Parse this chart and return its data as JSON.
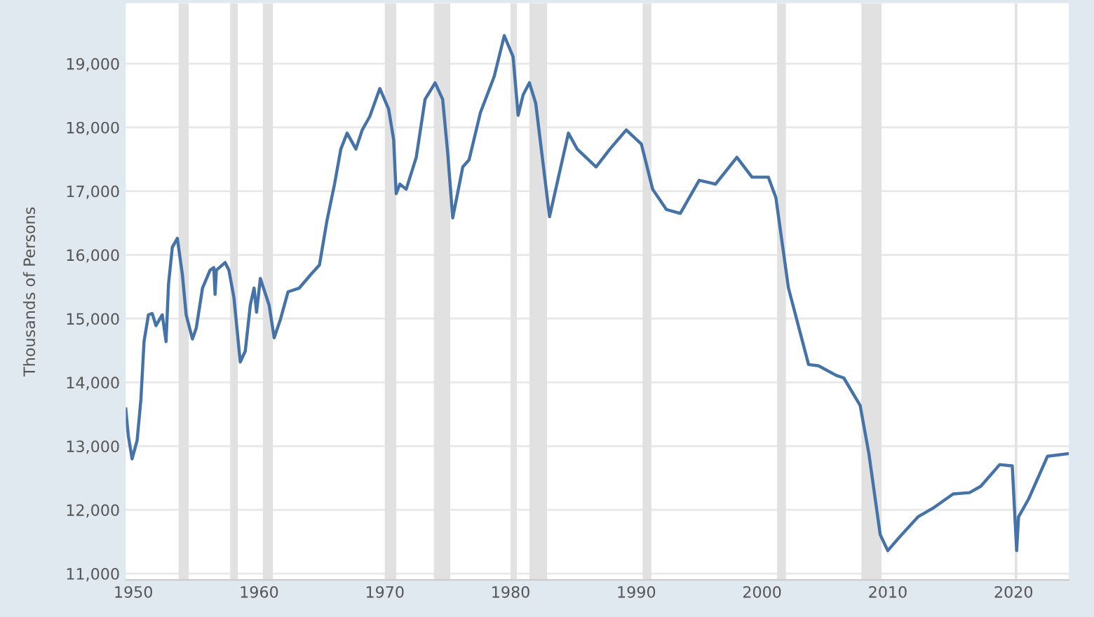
{
  "chart_data": {
    "type": "line",
    "ylabel": "Thousands of Persons",
    "x": [
      1949.4,
      1949.6,
      1949.9,
      1950.3,
      1950.6,
      1950.85,
      1951.2,
      1951.5,
      1951.8,
      1952.3,
      1952.6,
      1952.8,
      1953.1,
      1953.5,
      1953.9,
      1954.2,
      1954.7,
      1955.0,
      1955.5,
      1956.1,
      1956.4,
      1956.5,
      1956.6,
      1957.3,
      1957.6,
      1958.0,
      1958.5,
      1958.9,
      1959.3,
      1959.6,
      1959.8,
      1960.1,
      1960.8,
      1961.2,
      1961.7,
      1962.3,
      1963.2,
      1964.1,
      1964.8,
      1965.4,
      1966.0,
      1966.5,
      1967.0,
      1967.7,
      1968.2,
      1968.8,
      1969.6,
      1970.3,
      1970.7,
      1970.9,
      1971.2,
      1971.7,
      1972.5,
      1973.2,
      1974.0,
      1974.6,
      1975.0,
      1975.4,
      1976.2,
      1976.7,
      1977.6,
      1978.7,
      1979.5,
      1980.2,
      1980.6,
      1981.0,
      1981.5,
      1982.0,
      1983.1,
      1984.6,
      1985.3,
      1986.8,
      1987.9,
      1989.2,
      1990.4,
      1991.3,
      1992.4,
      1993.5,
      1995.0,
      1996.3,
      1998.0,
      1999.2,
      2000.5,
      2001.1,
      2002.1,
      2003.7,
      2004.5,
      2005.9,
      2006.5,
      2007.8,
      2008.5,
      2009.4,
      2010.0,
      2011.1,
      2012.4,
      2013.7,
      2015.2,
      2016.5,
      2017.4,
      2018.9,
      2019.9,
      2020.25,
      2020.4,
      2021.2,
      2022.7,
      2024.3
    ],
    "series": [
      {
        "color": "#4572a7",
        "values": [
          13580,
          13160,
          12800,
          13090,
          13730,
          14640,
          15060,
          15080,
          14890,
          15060,
          14640,
          15550,
          16120,
          16260,
          15690,
          15060,
          14680,
          14850,
          15480,
          15760,
          15800,
          15380,
          15760,
          15880,
          15760,
          15330,
          14320,
          14490,
          15210,
          15480,
          15100,
          15630,
          15210,
          14700,
          14990,
          15420,
          15480,
          15690,
          15840,
          16540,
          17110,
          17660,
          17910,
          17660,
          17960,
          18170,
          18610,
          18290,
          17810,
          16960,
          17110,
          17030,
          17530,
          18440,
          18700,
          18440,
          17600,
          16580,
          17380,
          17490,
          18230,
          18800,
          19440,
          19110,
          18190,
          18510,
          18700,
          18380,
          16600,
          17910,
          17660,
          17380,
          17660,
          17960,
          17740,
          17030,
          16710,
          16650,
          17170,
          17110,
          17530,
          17220,
          17220,
          16900,
          15480,
          14280,
          14260,
          14110,
          14070,
          13640,
          12880,
          11610,
          11360,
          11610,
          11890,
          12040,
          12250,
          12270,
          12370,
          12710,
          12690,
          11360,
          11890,
          12170,
          12840,
          12880
        ]
      }
    ],
    "xlim": [
      1949.4,
      2024.4
    ],
    "xticks": [
      1950,
      1960,
      1970,
      1980,
      1990,
      2000,
      2010,
      2020
    ],
    "ylim": [
      10900,
      19950
    ],
    "yticks": [
      {
        "value": 11000,
        "label": "11,000"
      },
      {
        "value": 12000,
        "label": "12,000"
      },
      {
        "value": 13000,
        "label": "13,000"
      },
      {
        "value": 14000,
        "label": "14,000"
      },
      {
        "value": 15000,
        "label": "15,000"
      },
      {
        "value": 16000,
        "label": "16,000"
      },
      {
        "value": 17000,
        "label": "17,000"
      },
      {
        "value": 18000,
        "label": "18,000"
      },
      {
        "value": 19000,
        "label": "19,000"
      }
    ],
    "grid": "y",
    "line_style": "solid",
    "bands": [
      {
        "axis": "x",
        "from": 1953.6,
        "to": 1954.4,
        "color": "#e1e1e1"
      },
      {
        "axis": "x",
        "from": 1957.7,
        "to": 1958.3,
        "color": "#e1e1e1"
      },
      {
        "axis": "x",
        "from": 1960.3,
        "to": 1961.1,
        "color": "#e1e1e1"
      },
      {
        "axis": "x",
        "from": 1970.0,
        "to": 1970.9,
        "color": "#e1e1e1"
      },
      {
        "axis": "x",
        "from": 1973.9,
        "to": 1975.2,
        "color": "#e1e1e1"
      },
      {
        "axis": "x",
        "from": 1980.0,
        "to": 1980.5,
        "color": "#e1e1e1"
      },
      {
        "axis": "x",
        "from": 1981.5,
        "to": 1982.9,
        "color": "#e1e1e1"
      },
      {
        "axis": "x",
        "from": 1990.5,
        "to": 1991.2,
        "color": "#e1e1e1"
      },
      {
        "axis": "x",
        "from": 2001.2,
        "to": 2001.9,
        "color": "#e1e1e1"
      },
      {
        "axis": "x",
        "from": 2007.9,
        "to": 2009.5,
        "color": "#e1e1e1"
      },
      {
        "axis": "x",
        "from": 2020.1,
        "to": 2020.3,
        "color": "#e1e1e1"
      }
    ]
  }
}
